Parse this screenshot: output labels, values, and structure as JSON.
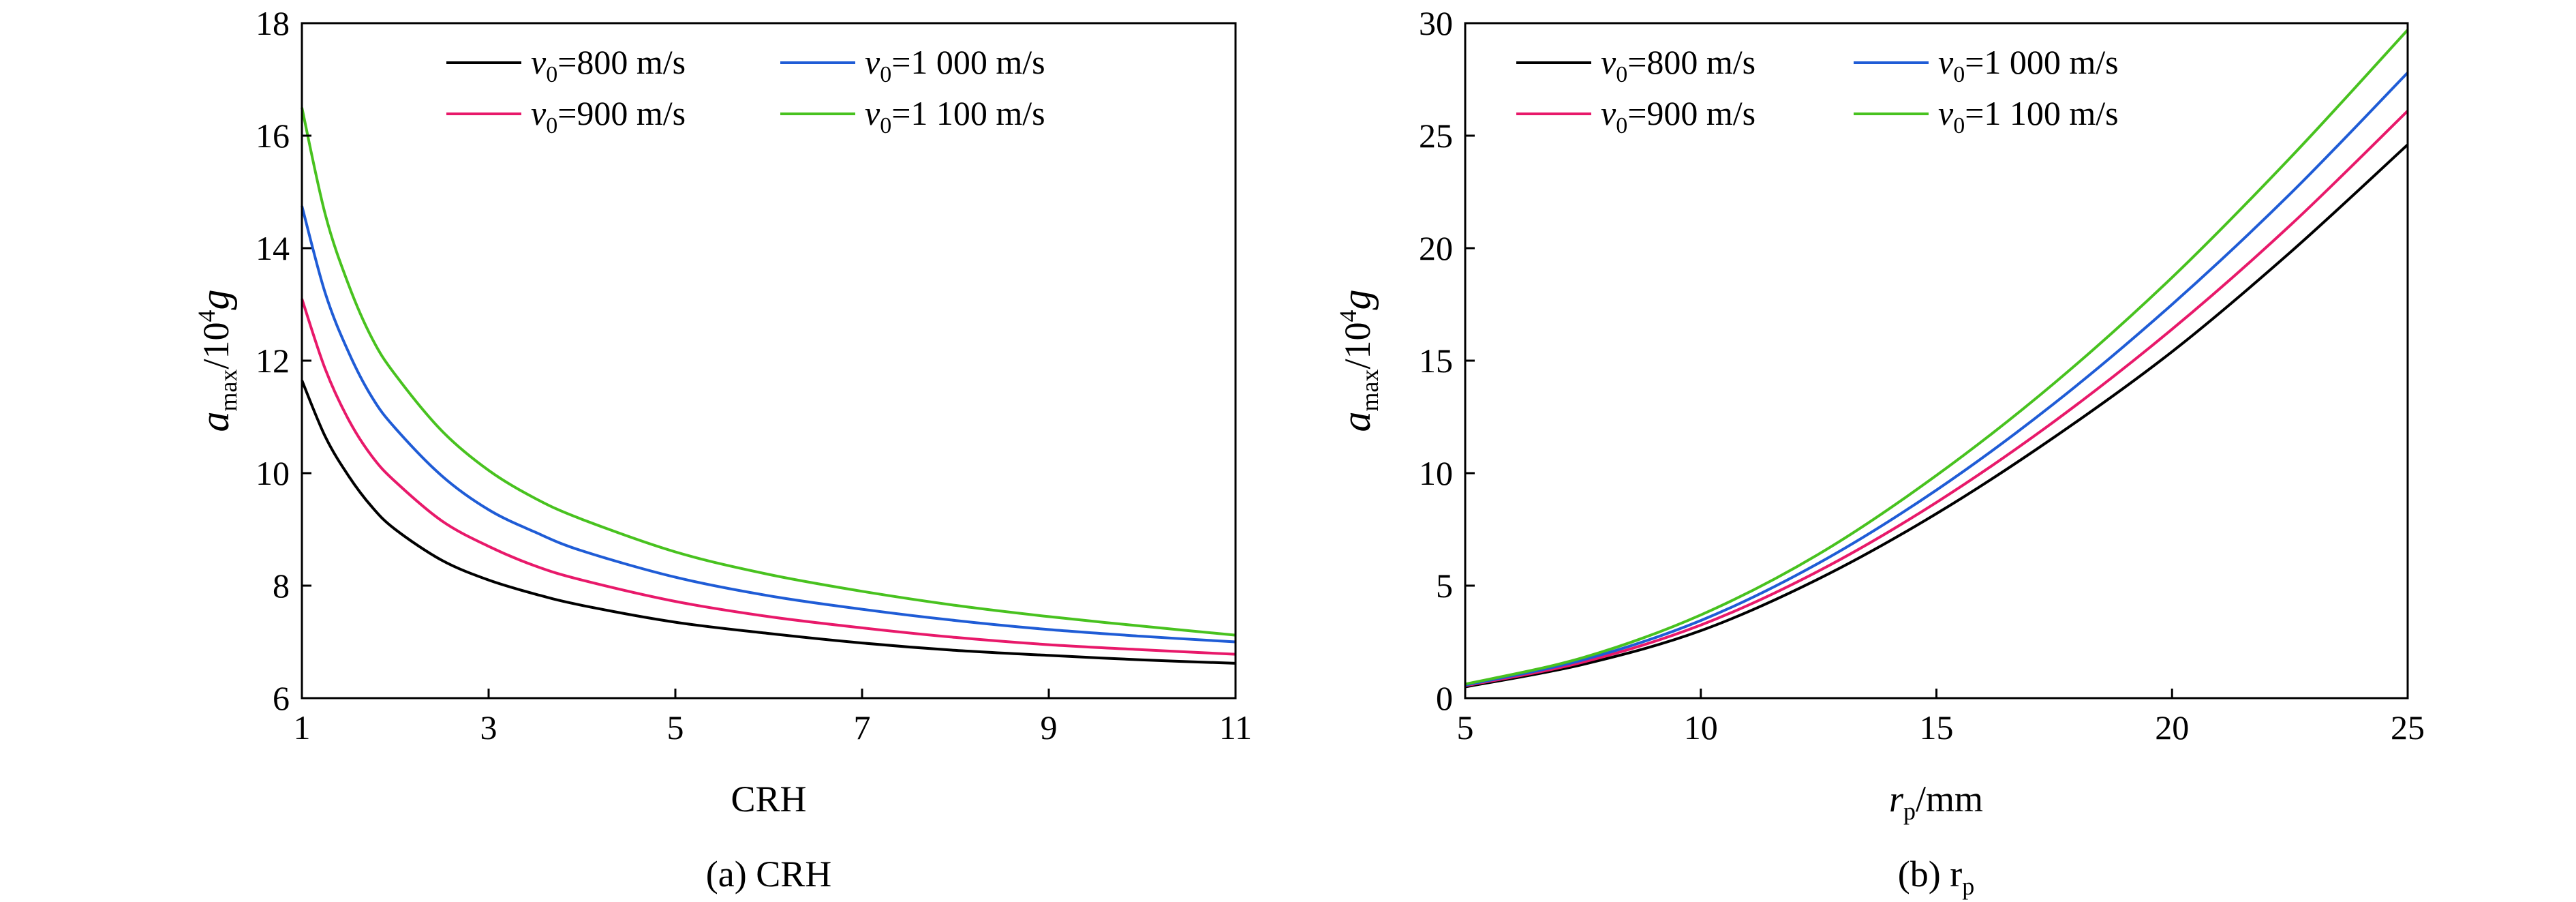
{
  "chart_data": [
    {
      "type": "line",
      "caption": "(a) CRH",
      "xlabel": "CRH",
      "ylabel_main": "a",
      "ylabel_sub": "max",
      "ylabel_rest": "/10",
      "ylabel_sup": "4",
      "ylabel_end": "g",
      "xlim": [
        1,
        11
      ],
      "ylim": [
        6,
        18
      ],
      "xticks": [
        1,
        3,
        5,
        7,
        9,
        11
      ],
      "yticks": [
        6,
        8,
        10,
        12,
        14,
        16,
        18
      ],
      "grid": false,
      "legend_placement": "top-right",
      "x": [
        1,
        1.25,
        1.5,
        1.75,
        2,
        2.5,
        3,
        3.5,
        4,
        5,
        6,
        7,
        8,
        9,
        10,
        11
      ],
      "series": [
        {
          "name_main": "v",
          "name_sub": "0",
          "name_rest": "=800 m/s",
          "color": "#000000",
          "values": [
            11.65,
            10.65,
            9.95,
            9.4,
            9.0,
            8.45,
            8.1,
            7.85,
            7.65,
            7.35,
            7.15,
            6.98,
            6.85,
            6.76,
            6.68,
            6.62
          ]
        },
        {
          "name_main": "v",
          "name_sub": "0",
          "name_rest": "=900 m/s",
          "color": "#e8196a",
          "values": [
            13.1,
            11.85,
            10.95,
            10.3,
            9.85,
            9.15,
            8.7,
            8.35,
            8.1,
            7.72,
            7.45,
            7.25,
            7.08,
            6.95,
            6.86,
            6.78
          ]
        },
        {
          "name_main": "v",
          "name_sub": "0",
          "name_rest": "=1 000 m/s",
          "color": "#1f5cd6",
          "values": [
            14.75,
            13.2,
            12.15,
            11.35,
            10.8,
            9.95,
            9.35,
            8.95,
            8.62,
            8.15,
            7.82,
            7.58,
            7.38,
            7.22,
            7.1,
            7.0
          ]
        },
        {
          "name_main": "v",
          "name_sub": "0",
          "name_rest": "=1 100 m/s",
          "color": "#48c21f",
          "values": [
            16.5,
            14.6,
            13.35,
            12.4,
            11.75,
            10.75,
            10.05,
            9.55,
            9.18,
            8.6,
            8.2,
            7.9,
            7.65,
            7.45,
            7.28,
            7.12
          ]
        }
      ]
    },
    {
      "type": "line",
      "caption_main": "(b) r",
      "caption_sub": "p",
      "xlabel_main": "r",
      "xlabel_sub": "p",
      "xlabel_rest": "/mm",
      "ylabel_main": "a",
      "ylabel_sub": "max",
      "ylabel_rest": "/10",
      "ylabel_sup": "4",
      "ylabel_end": "g",
      "xlim": [
        5,
        25
      ],
      "ylim": [
        0,
        30
      ],
      "xticks": [
        5,
        10,
        15,
        20,
        25
      ],
      "yticks": [
        0,
        5,
        10,
        15,
        20,
        25,
        30
      ],
      "grid": false,
      "legend_placement": "top-left",
      "x": [
        5,
        7.5,
        10,
        12.5,
        15,
        17.5,
        20,
        22.5,
        25
      ],
      "series": [
        {
          "name_main": "v",
          "name_sub": "0",
          "name_rest": "=800 m/s",
          "color": "#000000",
          "values": [
            0.5,
            1.5,
            3.0,
            5.3,
            8.2,
            11.6,
            15.4,
            19.8,
            24.6
          ]
        },
        {
          "name_main": "v",
          "name_sub": "0",
          "name_rest": "=900 m/s",
          "color": "#e8196a",
          "values": [
            0.55,
            1.6,
            3.25,
            5.65,
            8.7,
            12.3,
            16.4,
            21.0,
            26.1
          ]
        },
        {
          "name_main": "v",
          "name_sub": "0",
          "name_rest": "=1 000 m/s",
          "color": "#1f5cd6",
          "values": [
            0.58,
            1.7,
            3.45,
            6.0,
            9.25,
            13.1,
            17.5,
            22.4,
            27.8
          ]
        },
        {
          "name_main": "v",
          "name_sub": "0",
          "name_rest": "=1 100 m/s",
          "color": "#48c21f",
          "values": [
            0.62,
            1.8,
            3.7,
            6.4,
            9.9,
            14.0,
            18.7,
            24.0,
            29.7
          ]
        }
      ]
    }
  ]
}
